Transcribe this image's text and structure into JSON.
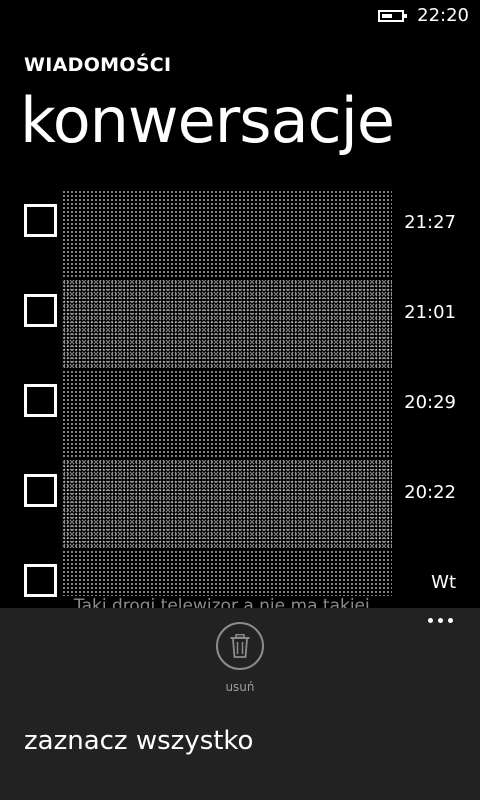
{
  "status_bar": {
    "time": "22:20",
    "battery_level": 0.55,
    "battery_icon": "battery-icon"
  },
  "header": {
    "app_title": "WIADOMOŚCI",
    "page_title": "konwersacje"
  },
  "conversations": [
    {
      "time": "21:27",
      "preview": ""
    },
    {
      "time": "21:01",
      "preview": ""
    },
    {
      "time": "20:29",
      "preview": ""
    },
    {
      "time": "20:22",
      "preview": ""
    },
    {
      "time": "Wt",
      "preview": "Taki drogi telewizor a nie ma takiej"
    }
  ],
  "app_bar": {
    "delete_label": "usuń",
    "delete_icon": "trash-icon",
    "more_icon": "ellipsis-icon",
    "menu_items": [
      {
        "label": "zaznacz wszystko"
      }
    ]
  }
}
